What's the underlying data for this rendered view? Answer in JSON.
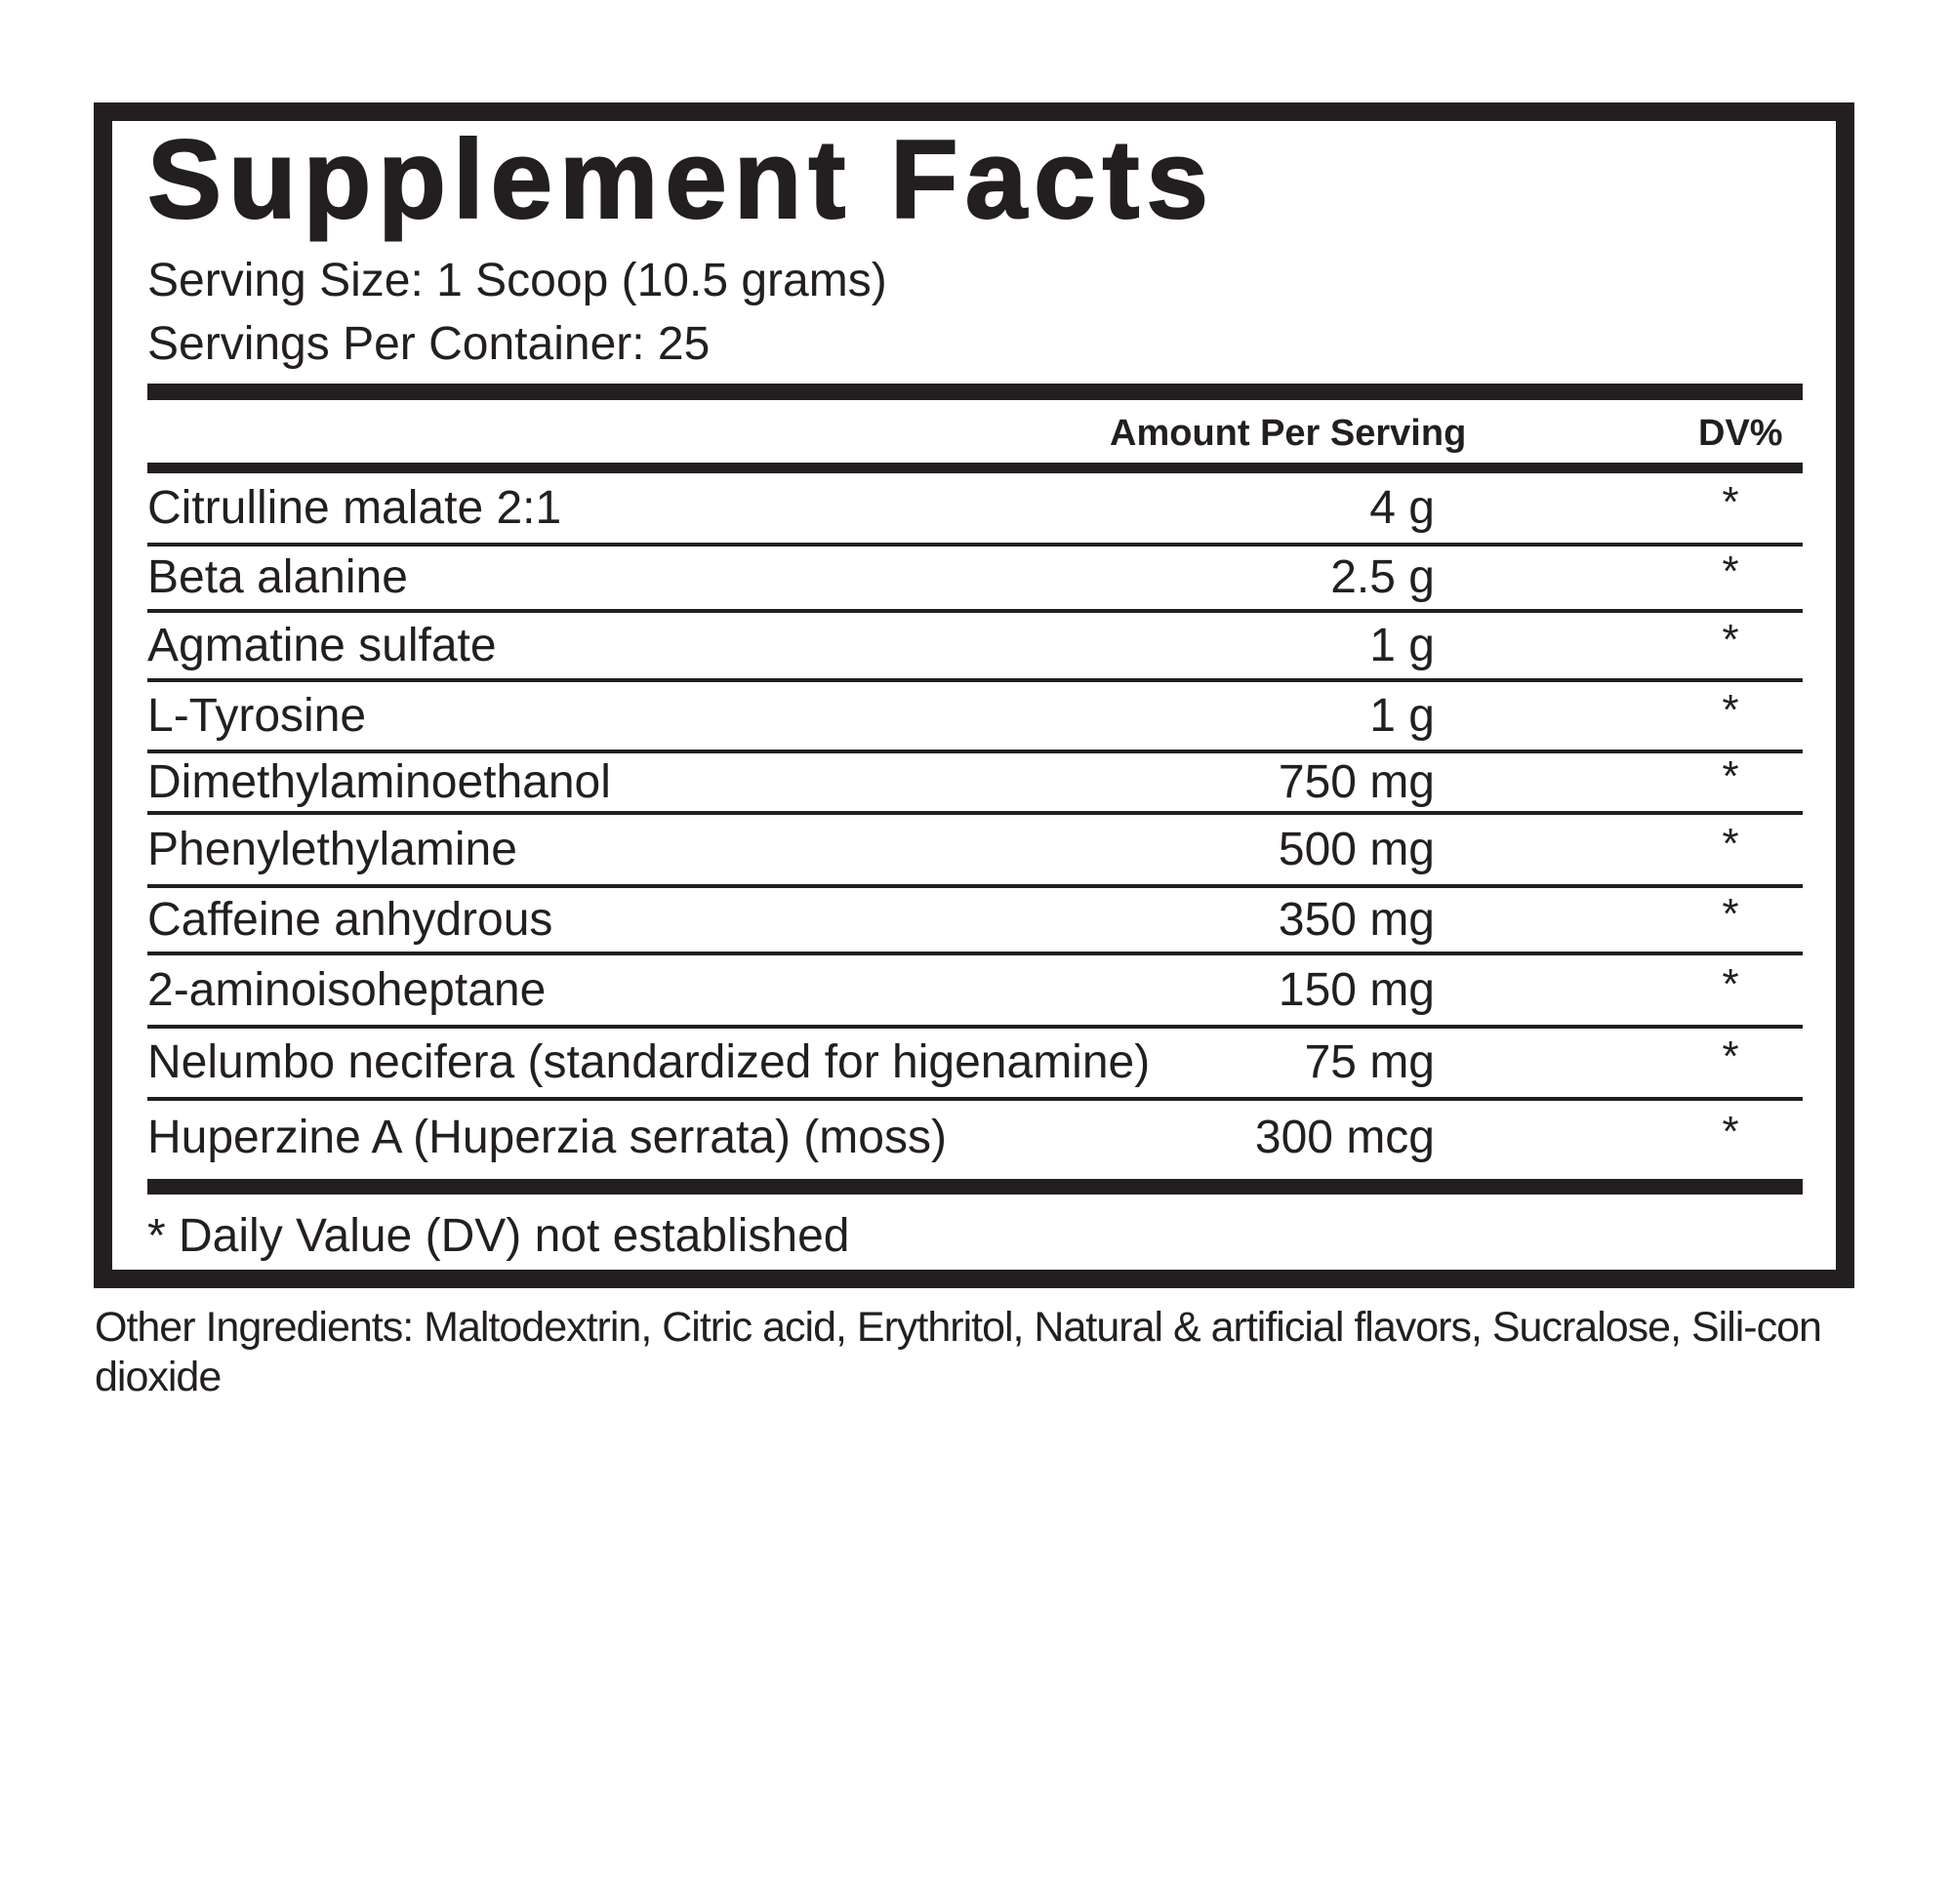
{
  "label": {
    "title": "Supplement Facts",
    "serving_size": "Serving Size: 1 Scoop (10.5 grams)",
    "servings_per_container": "Servings Per Container: 25",
    "header": {
      "amount": "Amount Per Serving",
      "dv": "DV%"
    },
    "rows": [
      {
        "name": "Citrulline malate 2:1",
        "amount": "4 g",
        "dv": "*"
      },
      {
        "name": "Beta alanine",
        "amount": "2.5 g",
        "dv": "*"
      },
      {
        "name": "Agmatine sulfate",
        "amount": "1 g",
        "dv": "*"
      },
      {
        "name": "L-Tyrosine",
        "amount": "1 g",
        "dv": "*"
      },
      {
        "name": "Dimethylaminoethanol",
        "amount": "750 mg",
        "dv": "*"
      },
      {
        "name": "Phenylethylamine",
        "amount": "500 mg",
        "dv": "*"
      },
      {
        "name": "Caffeine anhydrous",
        "amount": "350 mg",
        "dv": "*"
      },
      {
        "name": "2-aminoisoheptane",
        "amount": "150 mg",
        "dv": "*"
      },
      {
        "name": "Nelumbo necifera (standardized for higenamine)",
        "amount": "75 mg",
        "dv": "*"
      },
      {
        "name": "Huperzine A (Huperzia serrata) (moss)",
        "amount": "300 mcg",
        "dv": "*"
      }
    ],
    "footnote": "* Daily Value (DV) not established"
  },
  "other_ingredients": "Other Ingredients: Maltodextrin, Citric acid, Erythritol, Natural & artificial flavors, Sucralose, Sili-con dioxide",
  "colors": {
    "ink": "#231f20",
    "background": "#ffffff"
  }
}
